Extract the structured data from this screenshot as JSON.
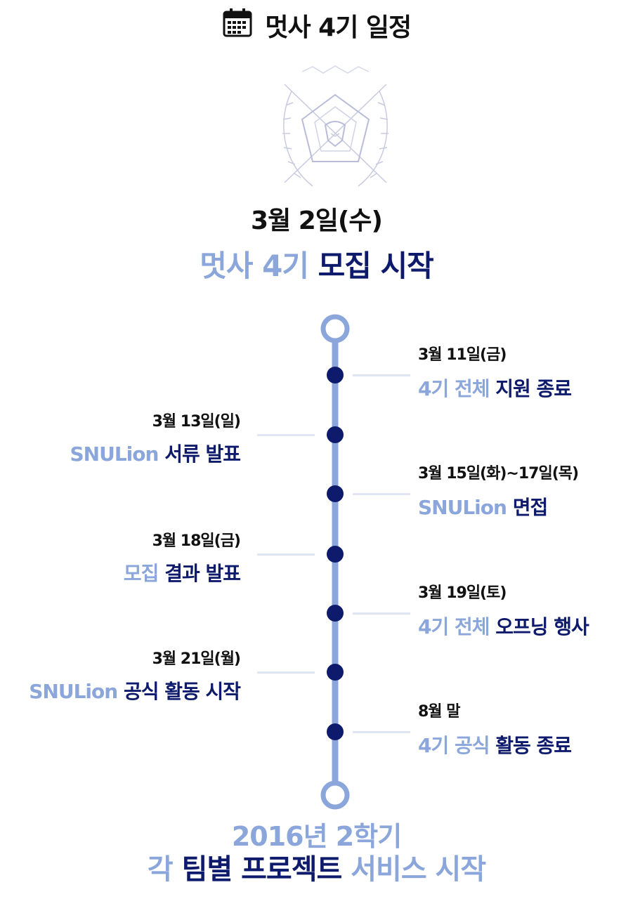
{
  "header": {
    "icon": "calendar-icon",
    "title": "멋사 4기 일정"
  },
  "logo": {
    "icon": "lion-emblem-icon"
  },
  "start": {
    "date": "3월 2일(수)",
    "event_light": "멋사 4기",
    "event_dark": "모집 시작"
  },
  "colors": {
    "light_blue": "#8ba6da",
    "navy": "#0e1a6b",
    "timeline": "#8ba6da",
    "dot": "#0e1a6b",
    "connector": "#dfe5f3"
  },
  "events": [
    {
      "side": "right",
      "date": "3월 11일(금)",
      "light": "4기 전체",
      "dark": "지원 종료"
    },
    {
      "side": "left",
      "date": "3월 13일(일)",
      "light": "SNULion",
      "dark": "서류 발표"
    },
    {
      "side": "right",
      "date": "3월 15일(화)~17일(목)",
      "light": "SNULion",
      "dark": "면접"
    },
    {
      "side": "left",
      "date": "3월 18일(금)",
      "light": "모집",
      "dark": "결과 발표"
    },
    {
      "side": "right",
      "date": "3월 19일(토)",
      "light": "4기 전체",
      "dark": "오프닝 행사"
    },
    {
      "side": "left",
      "date": "3월 21일(월)",
      "light": "SNULion",
      "dark": "공식 활동 시작"
    },
    {
      "side": "right",
      "date": "8월 말",
      "light": "4기 공식",
      "dark": "활동 종료"
    }
  ],
  "end": {
    "line1": "2016년 2학기",
    "line2_a": "각",
    "line2_b": "팀별 프로젝트",
    "line2_c": "서비스 시작"
  }
}
